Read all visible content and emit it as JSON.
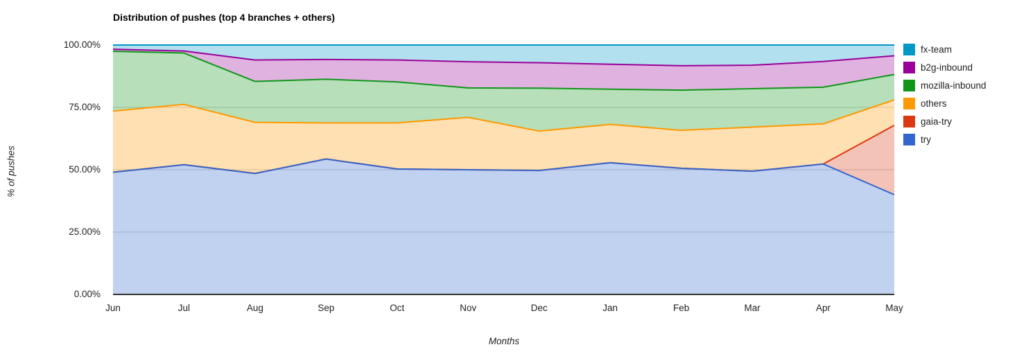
{
  "title": "Distribution of pushes (top 4 branches + others)",
  "x_axis": {
    "title": "Months"
  },
  "y_axis": {
    "title": "% of pushes",
    "ticks": [
      {
        "label": "100.00%",
        "value": 100
      },
      {
        "label": "75.00%",
        "value": 75
      },
      {
        "label": "50.00%",
        "value": 50
      },
      {
        "label": "25.00%",
        "value": 25
      },
      {
        "label": "0.00%",
        "value": 0
      }
    ]
  },
  "colors": {
    "try": "#3366cc",
    "gaia-try": "#dc3912",
    "others": "#ff9900",
    "mozilla-inbound": "#109618",
    "b2g-inbound": "#990099",
    "fx-team": "#0099c6",
    "gridline": "#cccccc",
    "axis_line": "#333333"
  },
  "chart_data": {
    "type": "area",
    "stacked": "percent",
    "title": "Distribution of pushes (top 4 branches + others)",
    "xlabel": "Months",
    "ylabel": "% of pushes",
    "ylim": [
      0,
      100
    ],
    "grid": "horizontal",
    "legend_position": "right",
    "fill_opacity": 0.3,
    "line_width": 2,
    "categories": [
      "Jun",
      "Jul",
      "Aug",
      "Sep",
      "Oct",
      "Nov",
      "Dec",
      "Jan",
      "Feb",
      "Mar",
      "Apr",
      "May"
    ],
    "series": [
      {
        "name": "try",
        "color": "#3366cc",
        "values": [
          49.0,
          52.0,
          48.5,
          54.3,
          50.3,
          50.0,
          49.7,
          52.8,
          50.6,
          49.4,
          52.3,
          40.0
        ]
      },
      {
        "name": "gaia-try",
        "color": "#dc3912",
        "values": [
          0,
          0,
          0,
          0,
          0,
          0,
          0,
          0,
          0,
          0,
          0,
          27.8
        ]
      },
      {
        "name": "others",
        "color": "#ff9900",
        "values": [
          24.5,
          24.2,
          20.5,
          14.5,
          18.5,
          21.0,
          15.8,
          15.4,
          15.2,
          17.7,
          16.1,
          10.2
        ]
      },
      {
        "name": "mozilla-inbound",
        "color": "#109618",
        "values": [
          24.0,
          20.6,
          16.4,
          17.5,
          16.4,
          11.8,
          17.2,
          14.1,
          16.1,
          15.4,
          14.7,
          10.2
        ]
      },
      {
        "name": "b2g-inbound",
        "color": "#990099",
        "values": [
          0.8,
          0.8,
          8.6,
          7.9,
          8.8,
          10.5,
          10.2,
          10.0,
          9.8,
          9.4,
          10.3,
          7.5
        ]
      },
      {
        "name": "fx-team",
        "color": "#0099c6",
        "values": [
          1.7,
          2.4,
          6.0,
          5.8,
          6.0,
          6.7,
          7.1,
          7.7,
          8.3,
          8.1,
          6.6,
          4.3
        ]
      }
    ],
    "legend": [
      "fx-team",
      "b2g-inbound",
      "mozilla-inbound",
      "others",
      "gaia-try",
      "try"
    ]
  }
}
